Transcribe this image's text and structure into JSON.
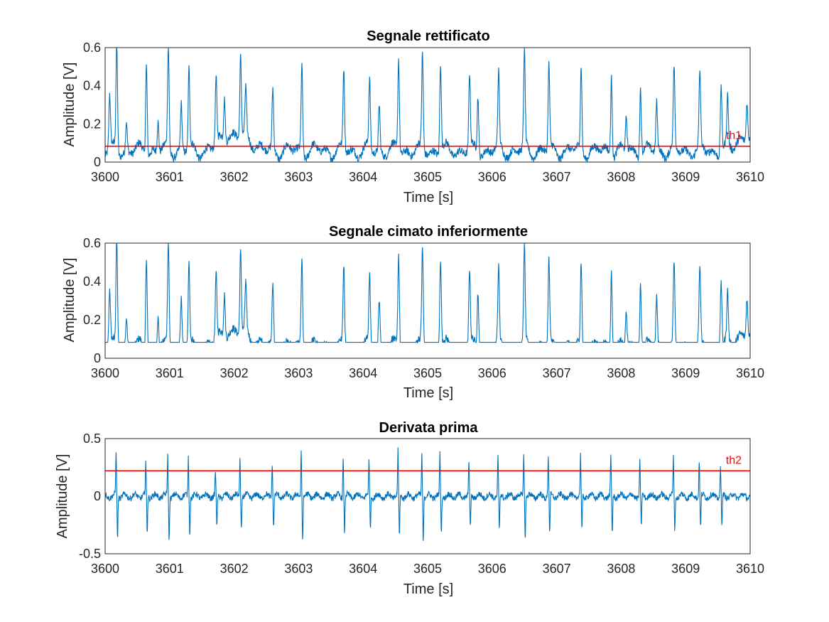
{
  "colors": {
    "signal": "#0072BD",
    "threshold": "#FF0000",
    "axis": "#262626"
  },
  "chart_data": [
    {
      "type": "line",
      "title": "Segnale rettificato",
      "xlabel": "Time [s]",
      "ylabel": "Amplitude [V]",
      "xlim": [
        3600,
        3610
      ],
      "ylim": [
        0,
        0.6
      ],
      "xticks": [
        "3600",
        "3601",
        "3602",
        "3603",
        "3604",
        "3605",
        "3606",
        "3607",
        "3608",
        "3609",
        "3610"
      ],
      "yticks": [
        "0",
        "0.2",
        "0.4",
        "0.6"
      ],
      "ytick_values": [
        0,
        0.2,
        0.4,
        0.6
      ],
      "baseline": "rectified",
      "threshold": {
        "label": "th1",
        "value": 0.083
      },
      "peaks": [
        {
          "t": 3600.07,
          "v": 0.28
        },
        {
          "t": 3600.18,
          "v": 0.57
        },
        {
          "t": 3600.33,
          "v": 0.15
        },
        {
          "t": 3600.64,
          "v": 0.48
        },
        {
          "t": 3600.82,
          "v": 0.16
        },
        {
          "t": 3600.98,
          "v": 0.53
        },
        {
          "t": 3601.18,
          "v": 0.24
        },
        {
          "t": 3601.3,
          "v": 0.42
        },
        {
          "t": 3601.72,
          "v": 0.34
        },
        {
          "t": 3601.85,
          "v": 0.22
        },
        {
          "t": 3602.1,
          "v": 0.43
        },
        {
          "t": 3602.18,
          "v": 0.24
        },
        {
          "t": 3602.6,
          "v": 0.31
        },
        {
          "t": 3603.05,
          "v": 0.46
        },
        {
          "t": 3603.7,
          "v": 0.42
        },
        {
          "t": 3604.1,
          "v": 0.36
        },
        {
          "t": 3604.25,
          "v": 0.24
        },
        {
          "t": 3604.55,
          "v": 0.49
        },
        {
          "t": 3604.92,
          "v": 0.49
        },
        {
          "t": 3605.2,
          "v": 0.47
        },
        {
          "t": 3605.65,
          "v": 0.39
        },
        {
          "t": 3605.78,
          "v": 0.3
        },
        {
          "t": 3606.1,
          "v": 0.38
        },
        {
          "t": 3606.5,
          "v": 0.5
        },
        {
          "t": 3606.88,
          "v": 0.44
        },
        {
          "t": 3607.38,
          "v": 0.43
        },
        {
          "t": 3607.85,
          "v": 0.42
        },
        {
          "t": 3608.08,
          "v": 0.18
        },
        {
          "t": 3608.3,
          "v": 0.36
        },
        {
          "t": 3608.55,
          "v": 0.25
        },
        {
          "t": 3608.82,
          "v": 0.41
        },
        {
          "t": 3609.22,
          "v": 0.38
        },
        {
          "t": 3609.55,
          "v": 0.36
        },
        {
          "t": 3609.65,
          "v": 0.25
        },
        {
          "t": 3609.95,
          "v": 0.2
        }
      ]
    },
    {
      "type": "line",
      "title": "Segnale cimato inferiormente",
      "xlabel": "Time [s]",
      "ylabel": "Amplitude [V]",
      "xlim": [
        3600,
        3610
      ],
      "ylim": [
        0,
        0.6
      ],
      "xticks": [
        "3600",
        "3601",
        "3602",
        "3603",
        "3604",
        "3605",
        "3606",
        "3607",
        "3608",
        "3609",
        "3610"
      ],
      "yticks": [
        "0",
        "0.2",
        "0.4",
        "0.6"
      ],
      "ytick_values": [
        0,
        0.2,
        0.4,
        0.6
      ],
      "baseline": "clipped",
      "clip_level": 0.083,
      "peaks": [
        {
          "t": 3600.07,
          "v": 0.28
        },
        {
          "t": 3600.18,
          "v": 0.57
        },
        {
          "t": 3600.33,
          "v": 0.15
        },
        {
          "t": 3600.64,
          "v": 0.48
        },
        {
          "t": 3600.82,
          "v": 0.16
        },
        {
          "t": 3600.98,
          "v": 0.53
        },
        {
          "t": 3601.18,
          "v": 0.24
        },
        {
          "t": 3601.3,
          "v": 0.42
        },
        {
          "t": 3601.72,
          "v": 0.34
        },
        {
          "t": 3601.85,
          "v": 0.22
        },
        {
          "t": 3602.1,
          "v": 0.43
        },
        {
          "t": 3602.18,
          "v": 0.24
        },
        {
          "t": 3602.6,
          "v": 0.31
        },
        {
          "t": 3603.05,
          "v": 0.46
        },
        {
          "t": 3603.7,
          "v": 0.42
        },
        {
          "t": 3604.1,
          "v": 0.36
        },
        {
          "t": 3604.25,
          "v": 0.24
        },
        {
          "t": 3604.55,
          "v": 0.49
        },
        {
          "t": 3604.92,
          "v": 0.49
        },
        {
          "t": 3605.2,
          "v": 0.47
        },
        {
          "t": 3605.65,
          "v": 0.39
        },
        {
          "t": 3605.78,
          "v": 0.3
        },
        {
          "t": 3606.1,
          "v": 0.38
        },
        {
          "t": 3606.5,
          "v": 0.5
        },
        {
          "t": 3606.88,
          "v": 0.44
        },
        {
          "t": 3607.38,
          "v": 0.43
        },
        {
          "t": 3607.85,
          "v": 0.42
        },
        {
          "t": 3608.08,
          "v": 0.18
        },
        {
          "t": 3608.3,
          "v": 0.36
        },
        {
          "t": 3608.55,
          "v": 0.25
        },
        {
          "t": 3608.82,
          "v": 0.41
        },
        {
          "t": 3609.22,
          "v": 0.38
        },
        {
          "t": 3609.55,
          "v": 0.36
        },
        {
          "t": 3609.65,
          "v": 0.25
        },
        {
          "t": 3609.95,
          "v": 0.2
        }
      ]
    },
    {
      "type": "line",
      "title": "Derivata prima",
      "xlabel": "Time [s]",
      "ylabel": "Amplitude [V]",
      "xlim": [
        3600,
        3610
      ],
      "ylim": [
        -0.5,
        0.5
      ],
      "xticks": [
        "3600",
        "3601",
        "3602",
        "3603",
        "3604",
        "3605",
        "3606",
        "3607",
        "3608",
        "3609",
        "3610"
      ],
      "yticks": [
        "-0.5",
        "0",
        "0.5"
      ],
      "ytick_values": [
        -0.5,
        0,
        0.5
      ],
      "baseline": "derivative",
      "threshold": {
        "label": "th2",
        "value": 0.22
      },
      "peaks": [
        {
          "t": 3600.18,
          "pos": 0.39,
          "neg": -0.37
        },
        {
          "t": 3600.64,
          "pos": 0.29,
          "neg": -0.33
        },
        {
          "t": 3600.98,
          "pos": 0.35,
          "neg": -0.38
        },
        {
          "t": 3601.3,
          "pos": 0.34,
          "neg": -0.32
        },
        {
          "t": 3601.72,
          "pos": 0.2,
          "neg": -0.3
        },
        {
          "t": 3602.1,
          "pos": 0.35,
          "neg": -0.29
        },
        {
          "t": 3602.6,
          "pos": 0.3,
          "neg": -0.27
        },
        {
          "t": 3603.05,
          "pos": 0.39,
          "neg": -0.37
        },
        {
          "t": 3603.7,
          "pos": 0.33,
          "neg": -0.31
        },
        {
          "t": 3604.1,
          "pos": 0.3,
          "neg": -0.28
        },
        {
          "t": 3604.55,
          "pos": 0.38,
          "neg": -0.36
        },
        {
          "t": 3604.92,
          "pos": 0.37,
          "neg": -0.39
        },
        {
          "t": 3605.2,
          "pos": 0.36,
          "neg": -0.32
        },
        {
          "t": 3605.65,
          "pos": 0.3,
          "neg": -0.3
        },
        {
          "t": 3606.1,
          "pos": 0.33,
          "neg": -0.3
        },
        {
          "t": 3606.5,
          "pos": 0.39,
          "neg": -0.36
        },
        {
          "t": 3606.88,
          "pos": 0.35,
          "neg": -0.33
        },
        {
          "t": 3607.38,
          "pos": 0.34,
          "neg": -0.31
        },
        {
          "t": 3607.85,
          "pos": 0.33,
          "neg": -0.34
        },
        {
          "t": 3608.3,
          "pos": 0.29,
          "neg": -0.28
        },
        {
          "t": 3608.82,
          "pos": 0.33,
          "neg": -0.29
        },
        {
          "t": 3609.22,
          "pos": 0.32,
          "neg": -0.29
        },
        {
          "t": 3609.55,
          "pos": 0.24,
          "neg": -0.26
        }
      ]
    }
  ]
}
